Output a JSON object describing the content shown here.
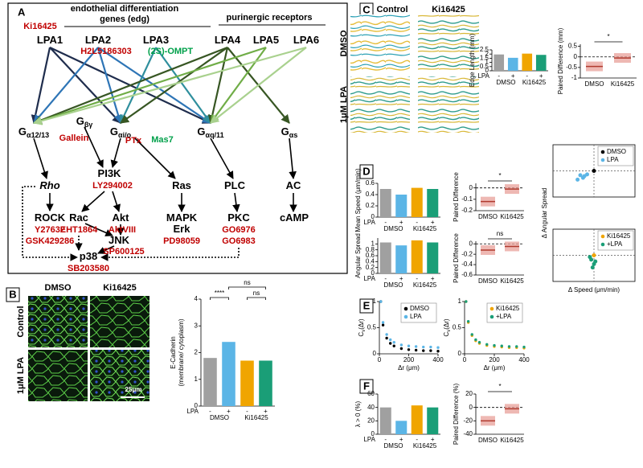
{
  "panel_labels": [
    "A",
    "B",
    "C",
    "D",
    "E",
    "F"
  ],
  "panel_a": {
    "header_left": [
      "endothelial differentiation",
      "genes (edg)"
    ],
    "header_right": "purinergic receptors",
    "nodes": [
      {
        "text": "Ki16425",
        "color": "#c00000"
      },
      {
        "text": "LPA1"
      },
      {
        "text": "LPA2"
      },
      {
        "text": "LPA3"
      },
      {
        "text": "LPA4"
      },
      {
        "text": "LPA5"
      },
      {
        "text": "LPA6"
      },
      {
        "text": "H2L5186303",
        "color": "#c00000"
      },
      {
        "text": "(2S)-OMPT",
        "color": "#00a04a"
      },
      {
        "text": "G",
        "sub": "α12/13"
      },
      {
        "text": "G",
        "sub": "βγ"
      },
      {
        "text": "G",
        "sub": "αi/o"
      },
      {
        "text": "G",
        "sub": "αq/11"
      },
      {
        "text": "G",
        "sub": "αs"
      },
      {
        "text": "Gallein",
        "color": "#c00000"
      },
      {
        "text": "PTx",
        "color": "#c00000"
      },
      {
        "text": "Mas7",
        "color": "#00a04a"
      },
      {
        "text": "Rho",
        "italic": true
      },
      {
        "text": "PI3K"
      },
      {
        "text": "LY294002",
        "color": "#c00000"
      },
      {
        "text": "Ras"
      },
      {
        "text": "PLC"
      },
      {
        "text": "AC"
      },
      {
        "text": "ROCK"
      },
      {
        "text": "Y27632",
        "color": "#c00000"
      },
      {
        "text": "GSK429286",
        "color": "#c00000"
      },
      {
        "text": "Rac"
      },
      {
        "text": "EHT1864",
        "color": "#c00000"
      },
      {
        "text": "Akt"
      },
      {
        "text": "AktVIII",
        "color": "#c00000"
      },
      {
        "text": "MAPK"
      },
      {
        "text": "Erk"
      },
      {
        "text": "PD98059",
        "color": "#c00000"
      },
      {
        "text": "PKC"
      },
      {
        "text": "GO6976",
        "color": "#c00000"
      },
      {
        "text": "GO6983",
        "color": "#c00000"
      },
      {
        "text": "cAMP"
      },
      {
        "text": "JNK"
      },
      {
        "text": "SP600125",
        "color": "#c00000"
      },
      {
        "text": "p38"
      },
      {
        "text": "SB203580",
        "color": "#c00000"
      }
    ]
  },
  "images": {
    "b_cols": [
      "DMSO",
      "Ki16425"
    ],
    "b_rows": [
      "Control",
      "1μM LPA"
    ],
    "b_scale": "25μm",
    "c_cols": [
      "Control",
      "Ki16425"
    ],
    "c_rows": [
      "DMSO",
      "1μM LPA"
    ]
  },
  "charts": [
    {
      "type": "bar",
      "ylabel": [
        "E-Cadherin",
        "(membrane/ cytoplasm)"
      ],
      "x_title": "LPA",
      "signs": [
        "-",
        "+",
        "-",
        "+"
      ],
      "groups": [
        "DMSO",
        "Ki16425"
      ],
      "values": [
        1.8,
        2.4,
        1.7,
        1.7
      ],
      "colors": [
        "#a0a0a0",
        "#5bb5e6",
        "#f0a500",
        "#1a9e77"
      ],
      "ylim": [
        0,
        4
      ],
      "yticks": [
        0,
        1,
        2,
        3,
        4
      ],
      "annotations": [
        "ns",
        "****",
        "ns"
      ]
    },
    {
      "type": "bar",
      "ylabel": [
        "Edge Length (mm)"
      ],
      "x_title": "LPA",
      "signs": [
        "-",
        "+",
        "-",
        "+"
      ],
      "groups": [
        "DMSO",
        "Ki16425"
      ],
      "values": [
        1.95,
        1.55,
        2.05,
        1.9
      ],
      "colors": [
        "#a0a0a0",
        "#5bb5e6",
        "#f0a500",
        "#1a9e77"
      ],
      "ylim": [
        0,
        2.5
      ],
      "yticks": [
        0,
        0.5,
        1,
        1.5,
        2,
        2.5
      ]
    },
    {
      "type": "paired",
      "ylabel": [
        "Paired Difference (mm)"
      ],
      "categories": [
        "DMSO",
        "Ki16425"
      ],
      "values": [
        -0.45,
        -0.05
      ],
      "color": "#e8a09a",
      "ylim": [
        -1,
        0.6
      ],
      "yticks": [
        -1,
        -0.5,
        0,
        0.5
      ],
      "annotations": [
        "*"
      ]
    },
    {
      "type": "bar",
      "ylabel": [
        "Mean Speed (μm/min)"
      ],
      "x_title": "LPA",
      "signs": [
        "-",
        "+",
        "-",
        "+"
      ],
      "groups": [
        "DMSO",
        "Ki16425"
      ],
      "values": [
        0.5,
        0.4,
        0.52,
        0.5
      ],
      "colors": [
        "#a0a0a0",
        "#5bb5e6",
        "#f0a500",
        "#1a9e77"
      ],
      "ylim": [
        0,
        0.6
      ],
      "yticks": [
        0,
        0.2,
        0.4,
        0.6
      ]
    },
    {
      "type": "paired",
      "ylabel": [
        "Paired Difference"
      ],
      "categories": [
        "DMSO",
        "Ki16425"
      ],
      "values": [
        -0.12,
        -0.01
      ],
      "color": "#e8a09a",
      "ylim": [
        -0.2,
        0.04
      ],
      "yticks": [
        -0.2,
        -0.1,
        0
      ],
      "annotations": [
        "*"
      ]
    },
    {
      "type": "bar",
      "ylabel": [
        "Angular Spread"
      ],
      "x_title": "LPA",
      "signs": [
        "-",
        "+",
        "-",
        "+"
      ],
      "groups": [
        "DMSO",
        "Ki16425"
      ],
      "values": [
        1.05,
        0.95,
        1.12,
        1.05
      ],
      "colors": [
        "#a0a0a0",
        "#5bb5e6",
        "#f0a500",
        "#1a9e77"
      ],
      "ylim": [
        0,
        1.2
      ],
      "yticks": [
        0,
        0.2,
        0.4,
        0.6,
        0.8,
        1
      ]
    },
    {
      "type": "paired",
      "ylabel": [
        "Paired Difference"
      ],
      "categories": [
        "DMSO",
        "Ki16425"
      ],
      "values": [
        -0.12,
        -0.05
      ],
      "color": "#e8a09a",
      "ylim": [
        -0.6,
        0.05
      ],
      "yticks": [
        -0.6,
        -0.4,
        -0.2,
        0
      ],
      "annotations": [
        "ns"
      ]
    },
    {
      "type": "scatter",
      "ylabel": "Δ Angular Spread",
      "xlim": [
        -0.3,
        0.3
      ],
      "ylim": [
        -0.3,
        0.3
      ],
      "series": [
        {
          "name": "DMSO",
          "color": "#000000",
          "x": [
            0
          ],
          "y": [
            0
          ]
        },
        {
          "name": "LPA",
          "color": "#5bb5e6",
          "x": [
            -0.1,
            -0.08,
            -0.05,
            -0.12,
            -0.07
          ],
          "y": [
            -0.05,
            -0.08,
            -0.04,
            -0.1,
            -0.06
          ]
        }
      ]
    },
    {
      "type": "scatter",
      "xlabel": "Δ Speed (μm/min)",
      "xlim": [
        -0.3,
        0.3
      ],
      "ylim": [
        -0.3,
        0.3
      ],
      "series": [
        {
          "name": "Ki16425",
          "color": "#f0a500",
          "x": [
            0
          ],
          "y": [
            0
          ]
        },
        {
          "name": "+LPA",
          "color": "#1a9e77",
          "x": [
            -0.02,
            0,
            -0.03,
            0.01,
            -0.01
          ],
          "y": [
            -0.05,
            -0.1,
            -0.02,
            -0.07,
            -0.14
          ]
        }
      ]
    },
    {
      "type": "line",
      "ylabel": [
        "C",
        "v",
        "(Δr)"
      ],
      "xlabel": "Δr (μm)",
      "xlim": [
        0,
        400
      ],
      "ylim": [
        0,
        1
      ],
      "xticks": [
        0,
        200,
        400
      ],
      "yticks": [
        0,
        0.5,
        1
      ],
      "x": [
        10,
        25,
        50,
        75,
        100,
        150,
        200,
        250,
        300,
        350,
        400
      ],
      "series": [
        {
          "name": "DMSO",
          "color": "#000000",
          "values": [
            1,
            0.55,
            0.3,
            0.2,
            0.15,
            0.1,
            0.08,
            0.07,
            0.06,
            0.06,
            0.05
          ]
        },
        {
          "name": "LPA",
          "color": "#5bb5e6",
          "values": [
            1,
            0.6,
            0.37,
            0.27,
            0.22,
            0.17,
            0.15,
            0.14,
            0.13,
            0.13,
            0.12
          ]
        }
      ]
    },
    {
      "type": "line",
      "ylabel": [
        "C",
        "v",
        "(Δr)"
      ],
      "xlabel": "Δr (μm)",
      "xlim": [
        0,
        400
      ],
      "ylim": [
        0,
        1
      ],
      "xticks": [
        0,
        200,
        400
      ],
      "yticks": [
        0,
        0.5,
        1
      ],
      "x": [
        10,
        25,
        50,
        75,
        100,
        150,
        200,
        250,
        300,
        350,
        400
      ],
      "series": [
        {
          "name": "Ki16425",
          "color": "#f0a500",
          "values": [
            1,
            0.6,
            0.35,
            0.25,
            0.2,
            0.16,
            0.14,
            0.13,
            0.12,
            0.12,
            0.11
          ]
        },
        {
          "name": "+LPA",
          "color": "#1a9e77",
          "values": [
            1,
            0.62,
            0.37,
            0.27,
            0.22,
            0.18,
            0.16,
            0.15,
            0.14,
            0.14,
            0.13
          ]
        }
      ]
    },
    {
      "type": "bar",
      "ylabel": [
        "λ > 0 (%)"
      ],
      "x_title": "LPA",
      "signs": [
        "-",
        "+",
        "-",
        "+"
      ],
      "groups": [
        "DMSO",
        "Ki16425"
      ],
      "values": [
        40,
        20,
        43,
        40
      ],
      "colors": [
        "#a0a0a0",
        "#5bb5e6",
        "#f0a500",
        "#1a9e77"
      ],
      "ylim": [
        0,
        60
      ],
      "yticks": [
        0,
        20,
        40,
        60
      ]
    },
    {
      "type": "paired",
      "ylabel": [
        "Paired Difference (%)"
      ],
      "categories": [
        "DMSO",
        "Ki16425"
      ],
      "values": [
        -20,
        -2
      ],
      "color": "#e8a09a",
      "ylim": [
        -40,
        20
      ],
      "yticks": [
        -40,
        -20,
        0,
        20
      ],
      "annotations": [
        "*"
      ]
    }
  ]
}
